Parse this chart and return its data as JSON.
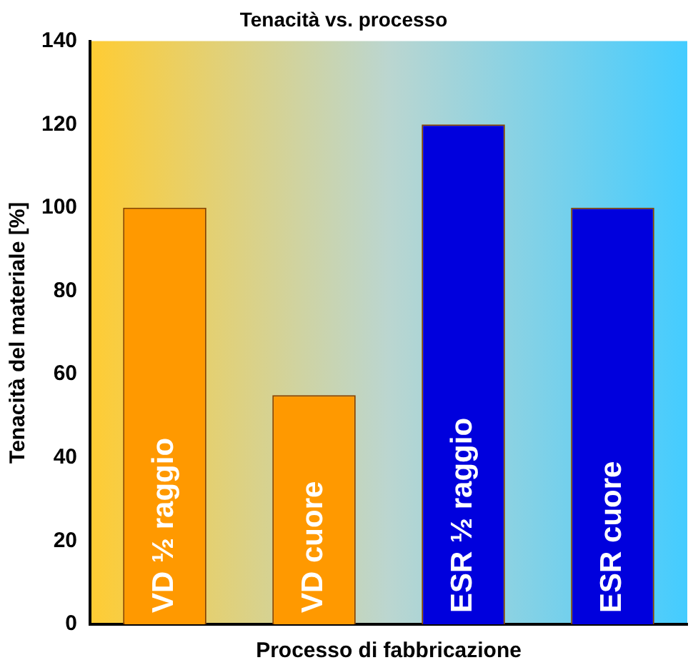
{
  "chart_data": {
    "type": "bar",
    "title": "Tenacità vs. processo",
    "xlabel": "Processo di fabbricazione",
    "ylabel": "Tenacità del materiale [%]",
    "categories": [
      "VD ½ raggio",
      "VD cuore",
      "ESR ½ raggio",
      "ESR cuore"
    ],
    "values": [
      100,
      55,
      120,
      100
    ],
    "colors": [
      "#ff9900",
      "#ff9900",
      "#0000dd",
      "#0000dd"
    ],
    "ylim": [
      0,
      140
    ],
    "yticks": [
      0,
      20,
      40,
      60,
      80,
      100,
      120,
      140
    ],
    "grid": false,
    "legend": false
  }
}
